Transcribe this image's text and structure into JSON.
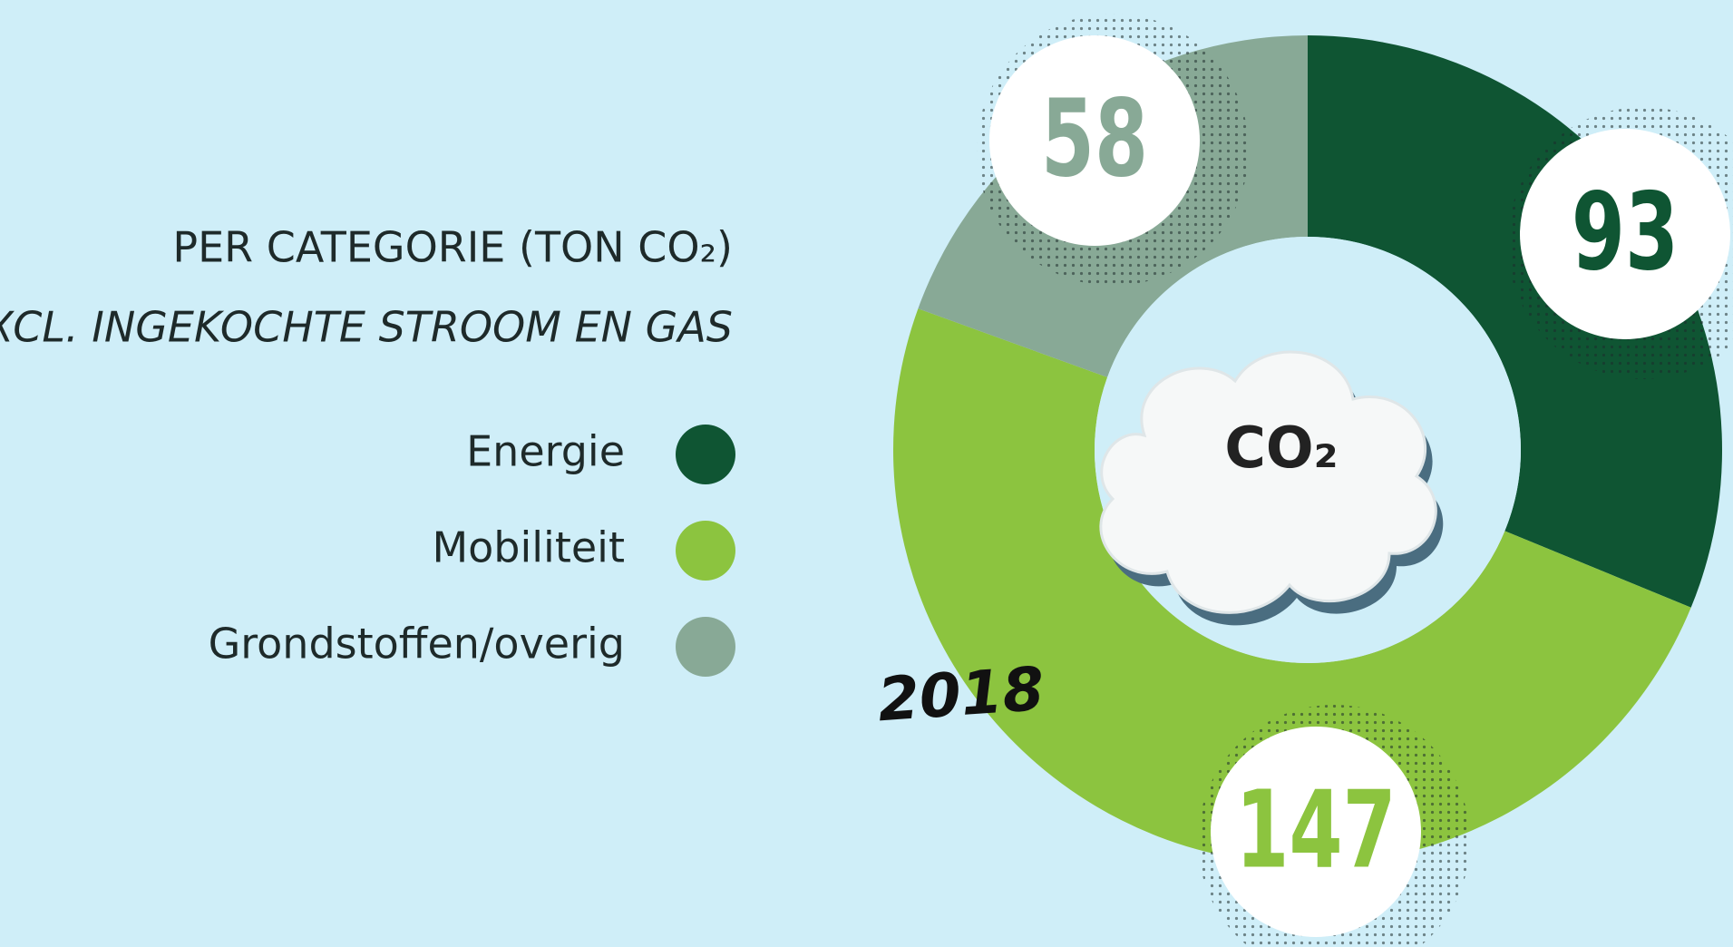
{
  "chart_data": {
    "type": "donut",
    "title": "PER CATEGORIE (TON CO₂)",
    "subtitle": "EXCL. INGEKOCHTE STROOM EN GAS",
    "annotation": "2018",
    "center_label": "CO₂",
    "categories": [
      "Energie",
      "Mobiliteit",
      "Grondstoffen/overig"
    ],
    "values": [
      93,
      147,
      58
    ],
    "colors": [
      "#0f5533",
      "#8cc43f",
      "#88a996"
    ]
  }
}
